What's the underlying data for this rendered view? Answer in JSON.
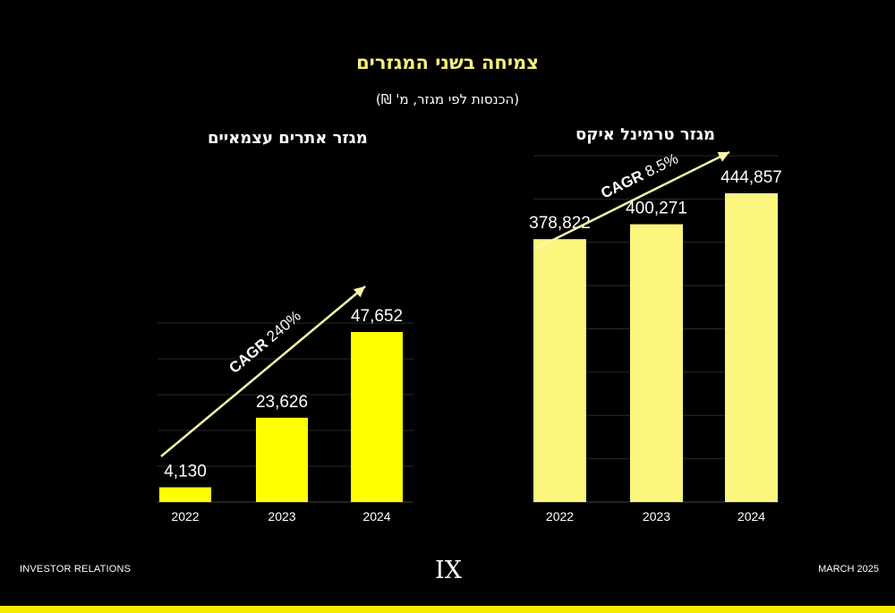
{
  "header": {
    "title": "צמיחה בשני המגזרים",
    "subtitle": "(הכנסות לפי מגזר, מ' ₪)"
  },
  "chart_data": [
    {
      "type": "bar",
      "title": "מגזר אתרים עצמאיים",
      "categories": [
        "2022",
        "2023",
        "2024"
      ],
      "values": [
        4130,
        23626,
        47652
      ],
      "value_labels": [
        "4,130",
        "23,626",
        "47,652"
      ],
      "annotation": {
        "bold": "CAGR",
        "text": "240%"
      },
      "bar_color": "#ffff00",
      "grid": true
    },
    {
      "type": "bar",
      "title": "מגזר טרמינל איקס",
      "categories": [
        "2022",
        "2023",
        "2024"
      ],
      "values": [
        378822,
        400271,
        444857
      ],
      "value_labels": [
        "378,822",
        "400,271",
        "444,857"
      ],
      "annotation": {
        "bold": "CAGR",
        "text": "8.5%"
      },
      "bar_color": "#faf67e",
      "grid": true
    }
  ],
  "footer": {
    "left": "INVESTOR RELATIONS",
    "right": "MARCH 2025",
    "logo": "IX"
  }
}
